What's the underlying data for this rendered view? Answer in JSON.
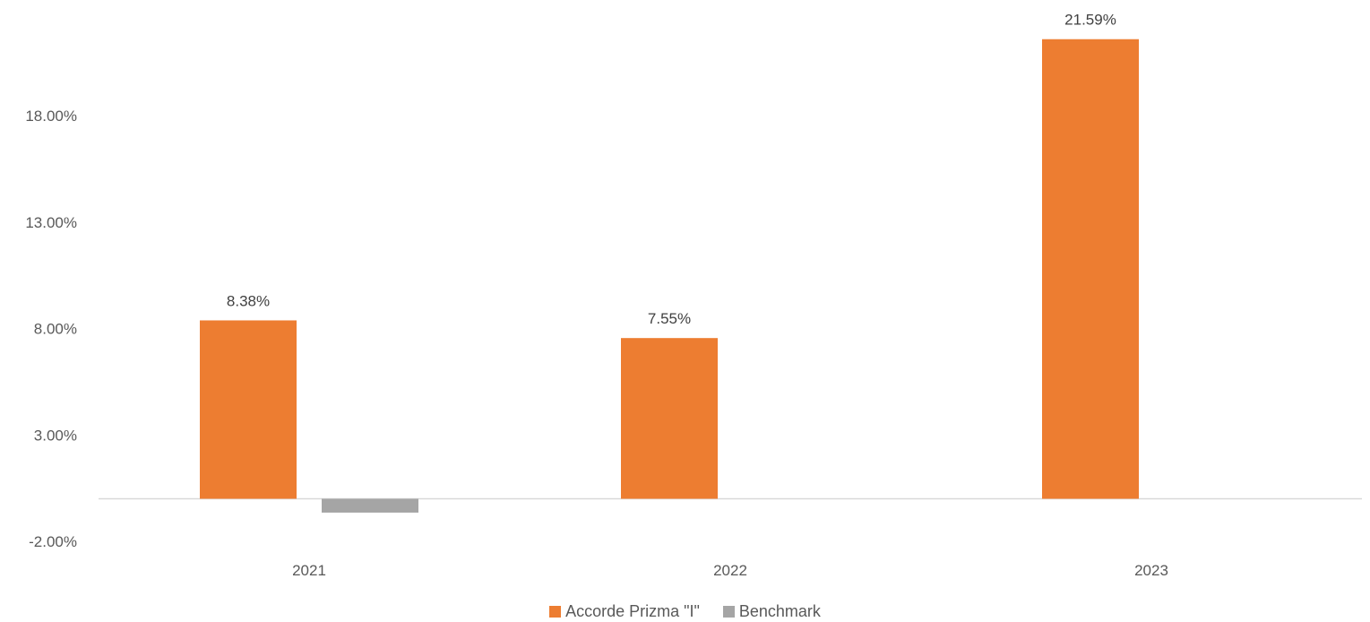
{
  "chart_data": {
    "type": "bar",
    "categories": [
      "2021",
      "2022",
      "2023"
    ],
    "series": [
      {
        "name": "Accorde Prizma \"I\"",
        "color": "#ED7D31",
        "values": [
          8.38,
          7.55,
          21.59
        ],
        "labels": [
          "8.38%",
          "7.55%",
          "21.59%"
        ]
      },
      {
        "name": "Benchmark",
        "color": "#A5A5A5",
        "values": [
          -0.65,
          0,
          0
        ],
        "labels": [
          "",
          "",
          ""
        ]
      }
    ],
    "y_ticks": [
      -2,
      3,
      8,
      13,
      18
    ],
    "y_tick_labels": [
      "-2.00%",
      "3.00%",
      "8.00%",
      "13.00%",
      "18.00%"
    ],
    "ylim": [
      -2,
      22
    ],
    "grid": false,
    "legend_position": "bottom",
    "title": "",
    "xlabel": "",
    "ylabel": ""
  }
}
